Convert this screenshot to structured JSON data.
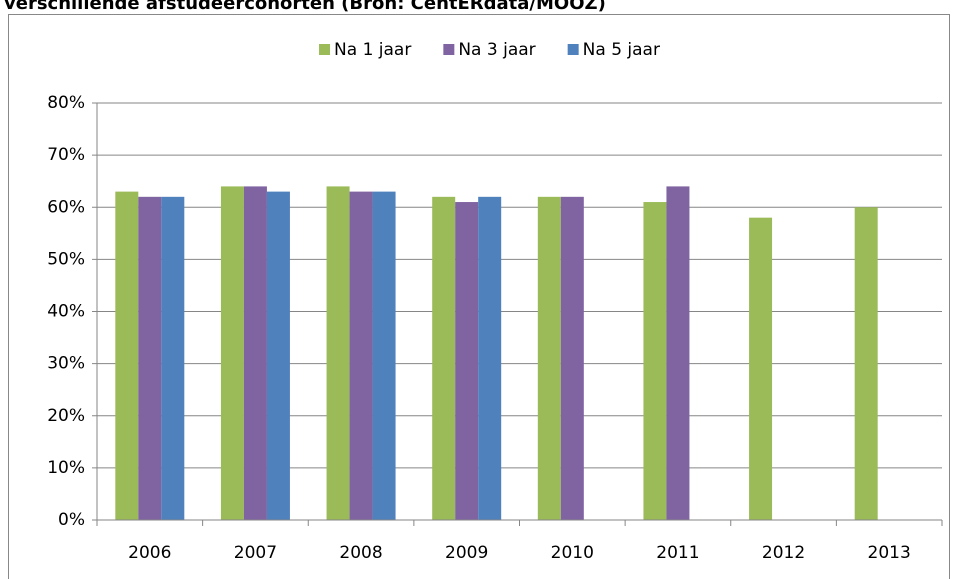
{
  "chart_data": {
    "type": "bar",
    "title": "verschillende afstudeercohorten (Bron: CentERdata/MOOZ)",
    "categories": [
      "2006",
      "2007",
      "2008",
      "2009",
      "2010",
      "2011",
      "2012",
      "2013"
    ],
    "series": [
      {
        "name": "Na 1 jaar",
        "color": "#9bbb59",
        "values": [
          63,
          64,
          64,
          62,
          62,
          61,
          58,
          60
        ]
      },
      {
        "name": "Na 3 jaar",
        "color": "#8064a2",
        "values": [
          62,
          64,
          63,
          61,
          62,
          64,
          null,
          null
        ]
      },
      {
        "name": "Na 5 jaar",
        "color": "#4f81bd",
        "values": [
          62,
          63,
          63,
          62,
          null,
          null,
          null,
          null
        ]
      }
    ],
    "ylim": [
      0,
      80
    ],
    "yticks": [
      {
        "value": 0,
        "label": "0%"
      },
      {
        "value": 10,
        "label": "10%"
      },
      {
        "value": 20,
        "label": "20%"
      },
      {
        "value": 30,
        "label": "30%"
      },
      {
        "value": 40,
        "label": "40%"
      },
      {
        "value": 50,
        "label": "50%"
      },
      {
        "value": 60,
        "label": "60%"
      },
      {
        "value": 70,
        "label": "70%"
      },
      {
        "value": 80,
        "label": "80%"
      }
    ],
    "grid": true,
    "legend": "top"
  }
}
